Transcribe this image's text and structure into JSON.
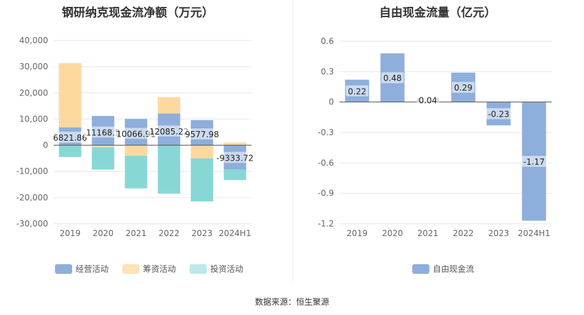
{
  "source_text": "数据来源：恒生聚源",
  "chart_data": [
    {
      "type": "bar",
      "stacked": true,
      "title": "钢研纳克现金流净额（万元）",
      "categories": [
        "2019",
        "2020",
        "2021",
        "2022",
        "2023",
        "2024H1"
      ],
      "series": [
        {
          "name": "经营活动",
          "color": "#8eaedc",
          "values": [
            6821.86,
            11168.5,
            10066.91,
            12085.22,
            9577.98,
            -9333.72
          ]
        },
        {
          "name": "筹资活动",
          "color": "#fed99f",
          "values": [
            24500,
            -800,
            -4000,
            6300,
            -5000,
            1000
          ]
        },
        {
          "name": "投资活动",
          "color": "#88d7d7",
          "values": [
            -4500,
            -8500,
            -12500,
            -18500,
            -16500,
            -4000
          ]
        }
      ],
      "data_labels": [
        "6821.86",
        "11168.5",
        "10066.91",
        "12085.22",
        "9577.98",
        "-9333.72"
      ],
      "ylim": [
        -30000,
        40000
      ],
      "yticks": [
        -30000,
        -20000,
        -10000,
        0,
        10000,
        20000,
        30000,
        40000
      ],
      "ytick_labels": [
        "-30,000",
        "-20,000",
        "-10,000",
        "0",
        "10,000",
        "20,000",
        "30,000",
        "40,000"
      ],
      "grid": true,
      "legend": "bottom-left"
    },
    {
      "type": "bar",
      "title": "自由现金流量（亿元）",
      "categories": [
        "2019",
        "2020",
        "2021",
        "2022",
        "2023",
        "2024H1"
      ],
      "series": [
        {
          "name": "自由现金流",
          "color": "#8eaedc",
          "values": [
            0.22,
            0.48,
            0.04,
            0.29,
            -0.23,
            -1.17
          ]
        }
      ],
      "data_labels": [
        "0.22",
        "0.48",
        "0.04",
        "0.29",
        "-0.23",
        "-1.17"
      ],
      "ylim": [
        -1.2,
        0.6
      ],
      "yticks": [
        -1.2,
        -0.9,
        -0.6,
        -0.3,
        0,
        0.3,
        0.6
      ],
      "ytick_labels": [
        "-1.2",
        "-0.9",
        "-0.6",
        "-0.3",
        "0",
        "0.3",
        "0.6"
      ],
      "grid": true,
      "legend": "bottom-center"
    }
  ]
}
